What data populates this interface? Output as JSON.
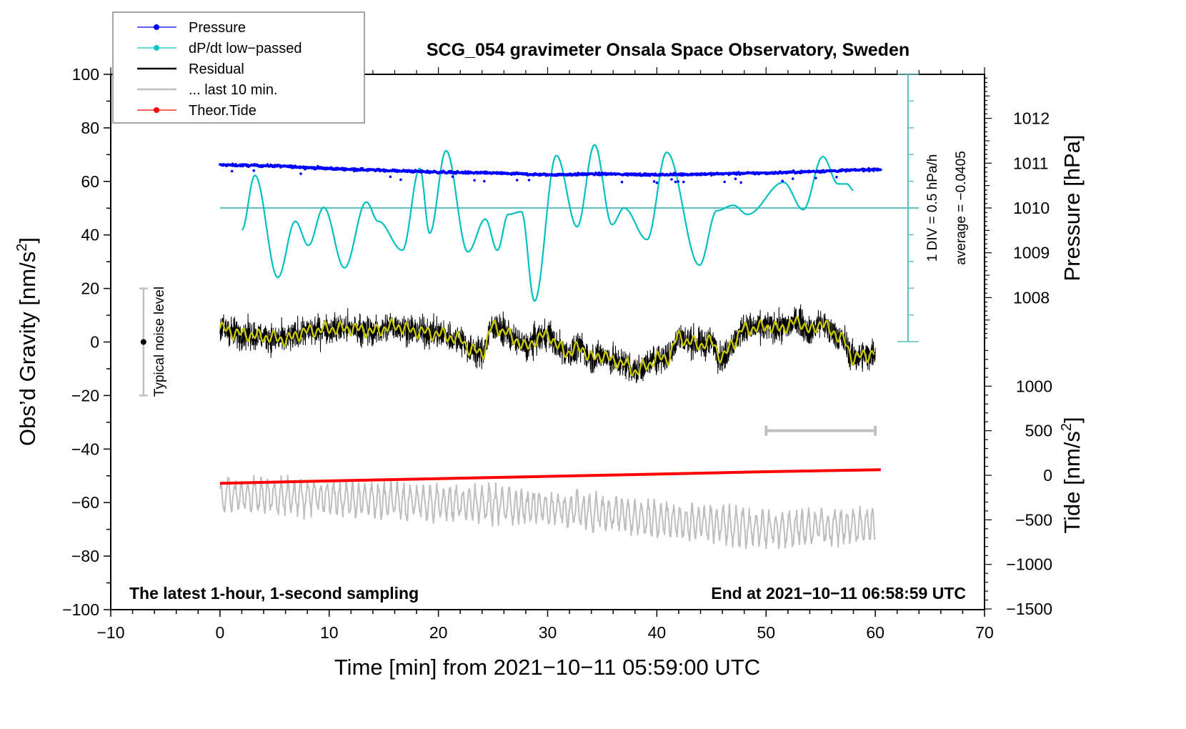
{
  "chart_data": {
    "type": "line",
    "title": "SCG_054 gravimeter Onsala Space Observatory, Sweden",
    "annotation_left": "The latest 1-hour, 1-second sampling",
    "annotation_right": "End at 2021−10−11 06:58:59 UTC",
    "xlabel": "Time [min] from 2021−10−11 05:59:00 UTC",
    "ylabel": "Obs’d Gravity [nm/s²]",
    "ylabel_main": "Obs’d Gravity [nm/s",
    "ylabel_sup": "2",
    "ylabel_end": "]",
    "y2label": "Pressure [hPa]",
    "y3label_main": "Tide [nm/s",
    "y3label_sup": "2",
    "y3label_end": "]",
    "xlim": [
      -10,
      70
    ],
    "ylim": [
      -100,
      100
    ],
    "pressure_lim_labels": [
      1008,
      1012
    ],
    "tide_lim_labels": [
      -1500,
      1000
    ],
    "x_ticks": [
      -10,
      0,
      10,
      20,
      30,
      40,
      50,
      60,
      70
    ],
    "x_tick_labels": [
      "−10",
      "0",
      "10",
      "20",
      "30",
      "40",
      "50",
      "60",
      "70"
    ],
    "y_ticks": [
      100,
      80,
      60,
      40,
      20,
      0,
      -20,
      -40,
      -60,
      -80,
      -100
    ],
    "y_tick_labels": [
      "100",
      "80",
      "60",
      "40",
      "20",
      "0",
      "−20",
      "−40",
      "−60",
      "−80",
      "−100"
    ],
    "pressure_ticks": [
      1012,
      1011,
      1010,
      1009,
      1008
    ],
    "pressure_tick_labels": [
      "1012",
      "1011",
      "1010",
      "1009",
      "1008"
    ],
    "tide_ticks": [
      1000,
      500,
      0,
      -500,
      -1000,
      -1500
    ],
    "tide_tick_labels": [
      "1000",
      "500",
      "0",
      "−500",
      "−1000",
      "−1500"
    ],
    "grid": false,
    "legend_position": "top-left",
    "legend": [
      {
        "label": "Pressure",
        "color": "#0000ff",
        "style": "line-dot"
      },
      {
        "label": "dP/dt low−passed",
        "color": "#00c8c8",
        "style": "line-dot"
      },
      {
        "label": "Residual",
        "color": "#000000",
        "style": "line"
      },
      {
        "label": "... last 10 min.",
        "color": "#bebebe",
        "style": "line"
      },
      {
        "label": "Theor.Tide",
        "color": "#ff0000",
        "style": "line-dot"
      }
    ],
    "colors": {
      "pressure": "#0000ff",
      "dpdt": "#00c0c0",
      "dpdt_scale": "#5fbfbf",
      "residual": "#000000",
      "residual_smooth": "#c8c800",
      "last10": "#bebebe",
      "tide": "#ff0000",
      "noise_bar": "#c0c0c0"
    },
    "dpdt_scale": {
      "label_div": "1 DIV = 0.5 hPa/h",
      "label_avg": "average = −0.0405",
      "div_hpa_per_h": 0.5,
      "divisions_each_side": 5,
      "x_min": 63.0
    },
    "noise_level": {
      "label": "Typical noise level",
      "x_min": -7,
      "center": 0,
      "half_range": 20
    },
    "last10_bar": {
      "x_start": 50,
      "x_end": 60,
      "tide_level": 500
    },
    "series": [
      {
        "name": "Pressure",
        "unit": "hPa",
        "x_range": [
          0,
          60.5
        ],
        "trend": [
          [
            0,
            1010.96
          ],
          [
            5,
            1010.94
          ],
          [
            10,
            1010.88
          ],
          [
            15,
            1010.84
          ],
          [
            20,
            1010.8
          ],
          [
            25,
            1010.78
          ],
          [
            30,
            1010.74
          ],
          [
            35,
            1010.76
          ],
          [
            40,
            1010.74
          ],
          [
            45,
            1010.76
          ],
          [
            50,
            1010.78
          ],
          [
            55,
            1010.82
          ],
          [
            60,
            1010.86
          ]
        ],
        "noise_hpa": 0.03
      },
      {
        "name": "dP/dt low-passed",
        "unit": "hPa/h",
        "points": [
          [
            2.0,
            -0.41
          ],
          [
            3.2,
            0.61
          ],
          [
            5.3,
            -1.3
          ],
          [
            6.9,
            -0.25
          ],
          [
            8.1,
            -0.7
          ],
          [
            9.5,
            0.01
          ],
          [
            11.4,
            -1.12
          ],
          [
            13.4,
            0.11
          ],
          [
            14.5,
            -0.25
          ],
          [
            16.7,
            -0.79
          ],
          [
            18.3,
            0.74
          ],
          [
            19.2,
            -0.47
          ],
          [
            20.7,
            1.07
          ],
          [
            22.7,
            -0.82
          ],
          [
            24.3,
            -0.21
          ],
          [
            25.4,
            -0.79
          ],
          [
            26.4,
            -0.12
          ],
          [
            27.6,
            -0.07
          ],
          [
            28.8,
            -1.74
          ],
          [
            30.8,
            0.98
          ],
          [
            32.7,
            -0.35
          ],
          [
            34.3,
            1.18
          ],
          [
            35.9,
            -0.31
          ],
          [
            37.0,
            0.0
          ],
          [
            39.1,
            -0.59
          ],
          [
            40.9,
            1.04
          ],
          [
            43.9,
            -1.07
          ],
          [
            45.5,
            -0.05
          ],
          [
            47.0,
            0.05
          ],
          [
            48.3,
            -0.12
          ],
          [
            51.6,
            0.48
          ],
          [
            53.4,
            -0.03
          ],
          [
            55.2,
            0.96
          ],
          [
            56.6,
            0.45
          ],
          [
            57.4,
            0.45
          ],
          [
            58.0,
            0.33
          ]
        ]
      },
      {
        "name": "Residual",
        "unit": "nm/s²",
        "x_range": [
          0,
          60
        ],
        "smoothed": [
          [
            0,
            5
          ],
          [
            2,
            3
          ],
          [
            4,
            2
          ],
          [
            6,
            1
          ],
          [
            8,
            4
          ],
          [
            10,
            5
          ],
          [
            12,
            5
          ],
          [
            14,
            4
          ],
          [
            16,
            6
          ],
          [
            18,
            4
          ],
          [
            20,
            3
          ],
          [
            22,
            1
          ],
          [
            23,
            -3
          ],
          [
            24,
            -4
          ],
          [
            25,
            6
          ],
          [
            26,
            4
          ],
          [
            27,
            1
          ],
          [
            28,
            -2
          ],
          [
            29,
            1
          ],
          [
            30,
            3
          ],
          [
            31,
            -2
          ],
          [
            32,
            -4
          ],
          [
            33,
            -2
          ],
          [
            34,
            -6
          ],
          [
            35,
            -5
          ],
          [
            36,
            -7
          ],
          [
            37,
            -8
          ],
          [
            38,
            -11
          ],
          [
            39,
            -9
          ],
          [
            40,
            -6
          ],
          [
            41,
            -6
          ],
          [
            42,
            2
          ],
          [
            43,
            0
          ],
          [
            44,
            -1
          ],
          [
            45,
            0
          ],
          [
            46,
            -6
          ],
          [
            47,
            0
          ],
          [
            48,
            5
          ],
          [
            49,
            5
          ],
          [
            50,
            6
          ],
          [
            51,
            5
          ],
          [
            52,
            6
          ],
          [
            53,
            8
          ],
          [
            54,
            4
          ],
          [
            55,
            7
          ],
          [
            56,
            4
          ],
          [
            57,
            1
          ],
          [
            58,
            -6
          ],
          [
            59,
            -5
          ],
          [
            60,
            -4
          ]
        ],
        "noise_amplitude": 7
      },
      {
        "name": "... last 10 min.",
        "unit": "nm/s² (offset display)",
        "x_range": [
          0,
          60
        ],
        "trend": [
          [
            0,
            -57
          ],
          [
            10,
            -58
          ],
          [
            20,
            -60
          ],
          [
            30,
            -62
          ],
          [
            40,
            -66
          ],
          [
            50,
            -70
          ],
          [
            60,
            -68
          ]
        ],
        "oscillation_amplitude": 8
      },
      {
        "name": "Theor.Tide",
        "unit": "nm/s²",
        "points": [
          [
            0,
            -90
          ],
          [
            10,
            -63
          ],
          [
            20,
            -38
          ],
          [
            30,
            -12
          ],
          [
            40,
            13
          ],
          [
            50,
            40
          ],
          [
            60.5,
            62
          ]
        ]
      }
    ]
  }
}
